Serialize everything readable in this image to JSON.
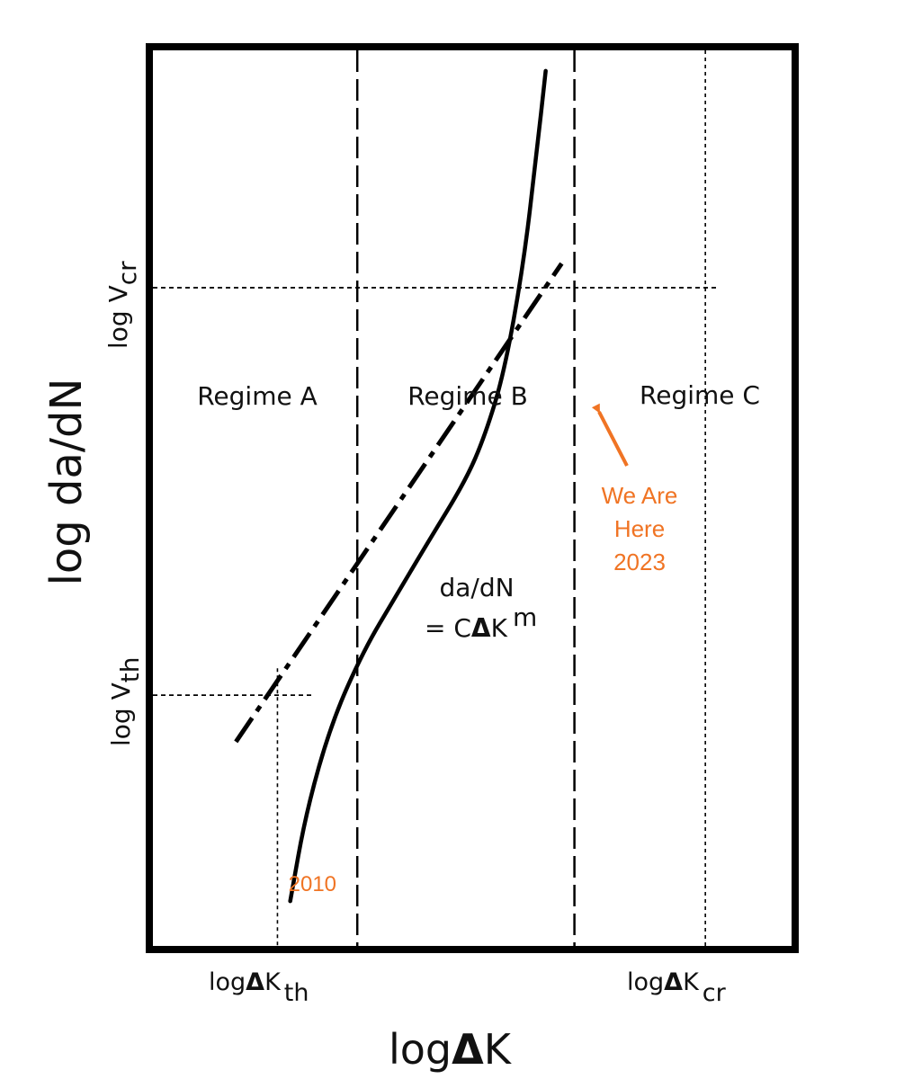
{
  "chart_data": {
    "type": "line",
    "title": "",
    "xlabel": {
      "prefix": "log",
      "delta": "Δ",
      "main": "K"
    },
    "ylabel": "log da/dN",
    "axes_scale": "log-log (schematic, no numeric ticks)",
    "x_ticks": [
      {
        "prefix": "log",
        "delta": "Δ",
        "main": "K",
        "sub": "th"
      },
      {
        "prefix": "log",
        "delta": "Δ",
        "main": "K",
        "sub": "cr"
      }
    ],
    "y_ticks": [
      {
        "main": "log V",
        "sub": "th"
      },
      {
        "main": "log V",
        "sub": "cr"
      }
    ],
    "regimes": [
      "Regime A",
      "Regime B",
      "Regime C"
    ],
    "equation": {
      "line1": "da/dN",
      "line2_prefix": "= C",
      "delta": "Δ",
      "main": "K",
      "exp": "m"
    },
    "series": [
      {
        "name": "crack growth curve",
        "style": "solid",
        "x": [
          0.215,
          0.24,
          0.28,
          0.33,
          0.38,
          0.43,
          0.49,
          0.52,
          0.55,
          0.58,
          0.6,
          0.615
        ],
        "y": [
          0.05,
          0.15,
          0.25,
          0.33,
          0.39,
          0.45,
          0.52,
          0.57,
          0.64,
          0.76,
          0.88,
          0.977
        ]
      },
      {
        "name": "Paris law extrapolation",
        "style": "dash-dot",
        "x": [
          0.13,
          0.64
        ],
        "y": [
          0.228,
          0.762
        ]
      }
    ],
    "reference_lines": [
      {
        "name": "dK_th",
        "orientation": "vertical",
        "at_x": 0.195,
        "style": "fine-dotted"
      },
      {
        "name": "regime A/B boundary",
        "orientation": "vertical",
        "at_x": 0.32,
        "style": "dashed"
      },
      {
        "name": "regime B/C boundary",
        "orientation": "vertical",
        "at_x": 0.66,
        "style": "dashed"
      },
      {
        "name": "dK_cr",
        "orientation": "vertical",
        "at_x": 0.865,
        "style": "fine-dotted"
      },
      {
        "name": "V_th",
        "orientation": "horizontal",
        "at_y": 0.28,
        "style": "fine-dotted"
      },
      {
        "name": "V_cr",
        "orientation": "horizontal",
        "at_y": 0.735,
        "style": "fine-dotted"
      }
    ],
    "annotations": [
      {
        "text": "2010",
        "at_x": 0.215,
        "at_y": 0.05,
        "color": "#F07424"
      },
      {
        "lines": [
          "We Are",
          "Here",
          "2023"
        ],
        "at_x": 0.676,
        "at_y": 0.59,
        "color": "#F07424",
        "arrow": true
      }
    ]
  }
}
